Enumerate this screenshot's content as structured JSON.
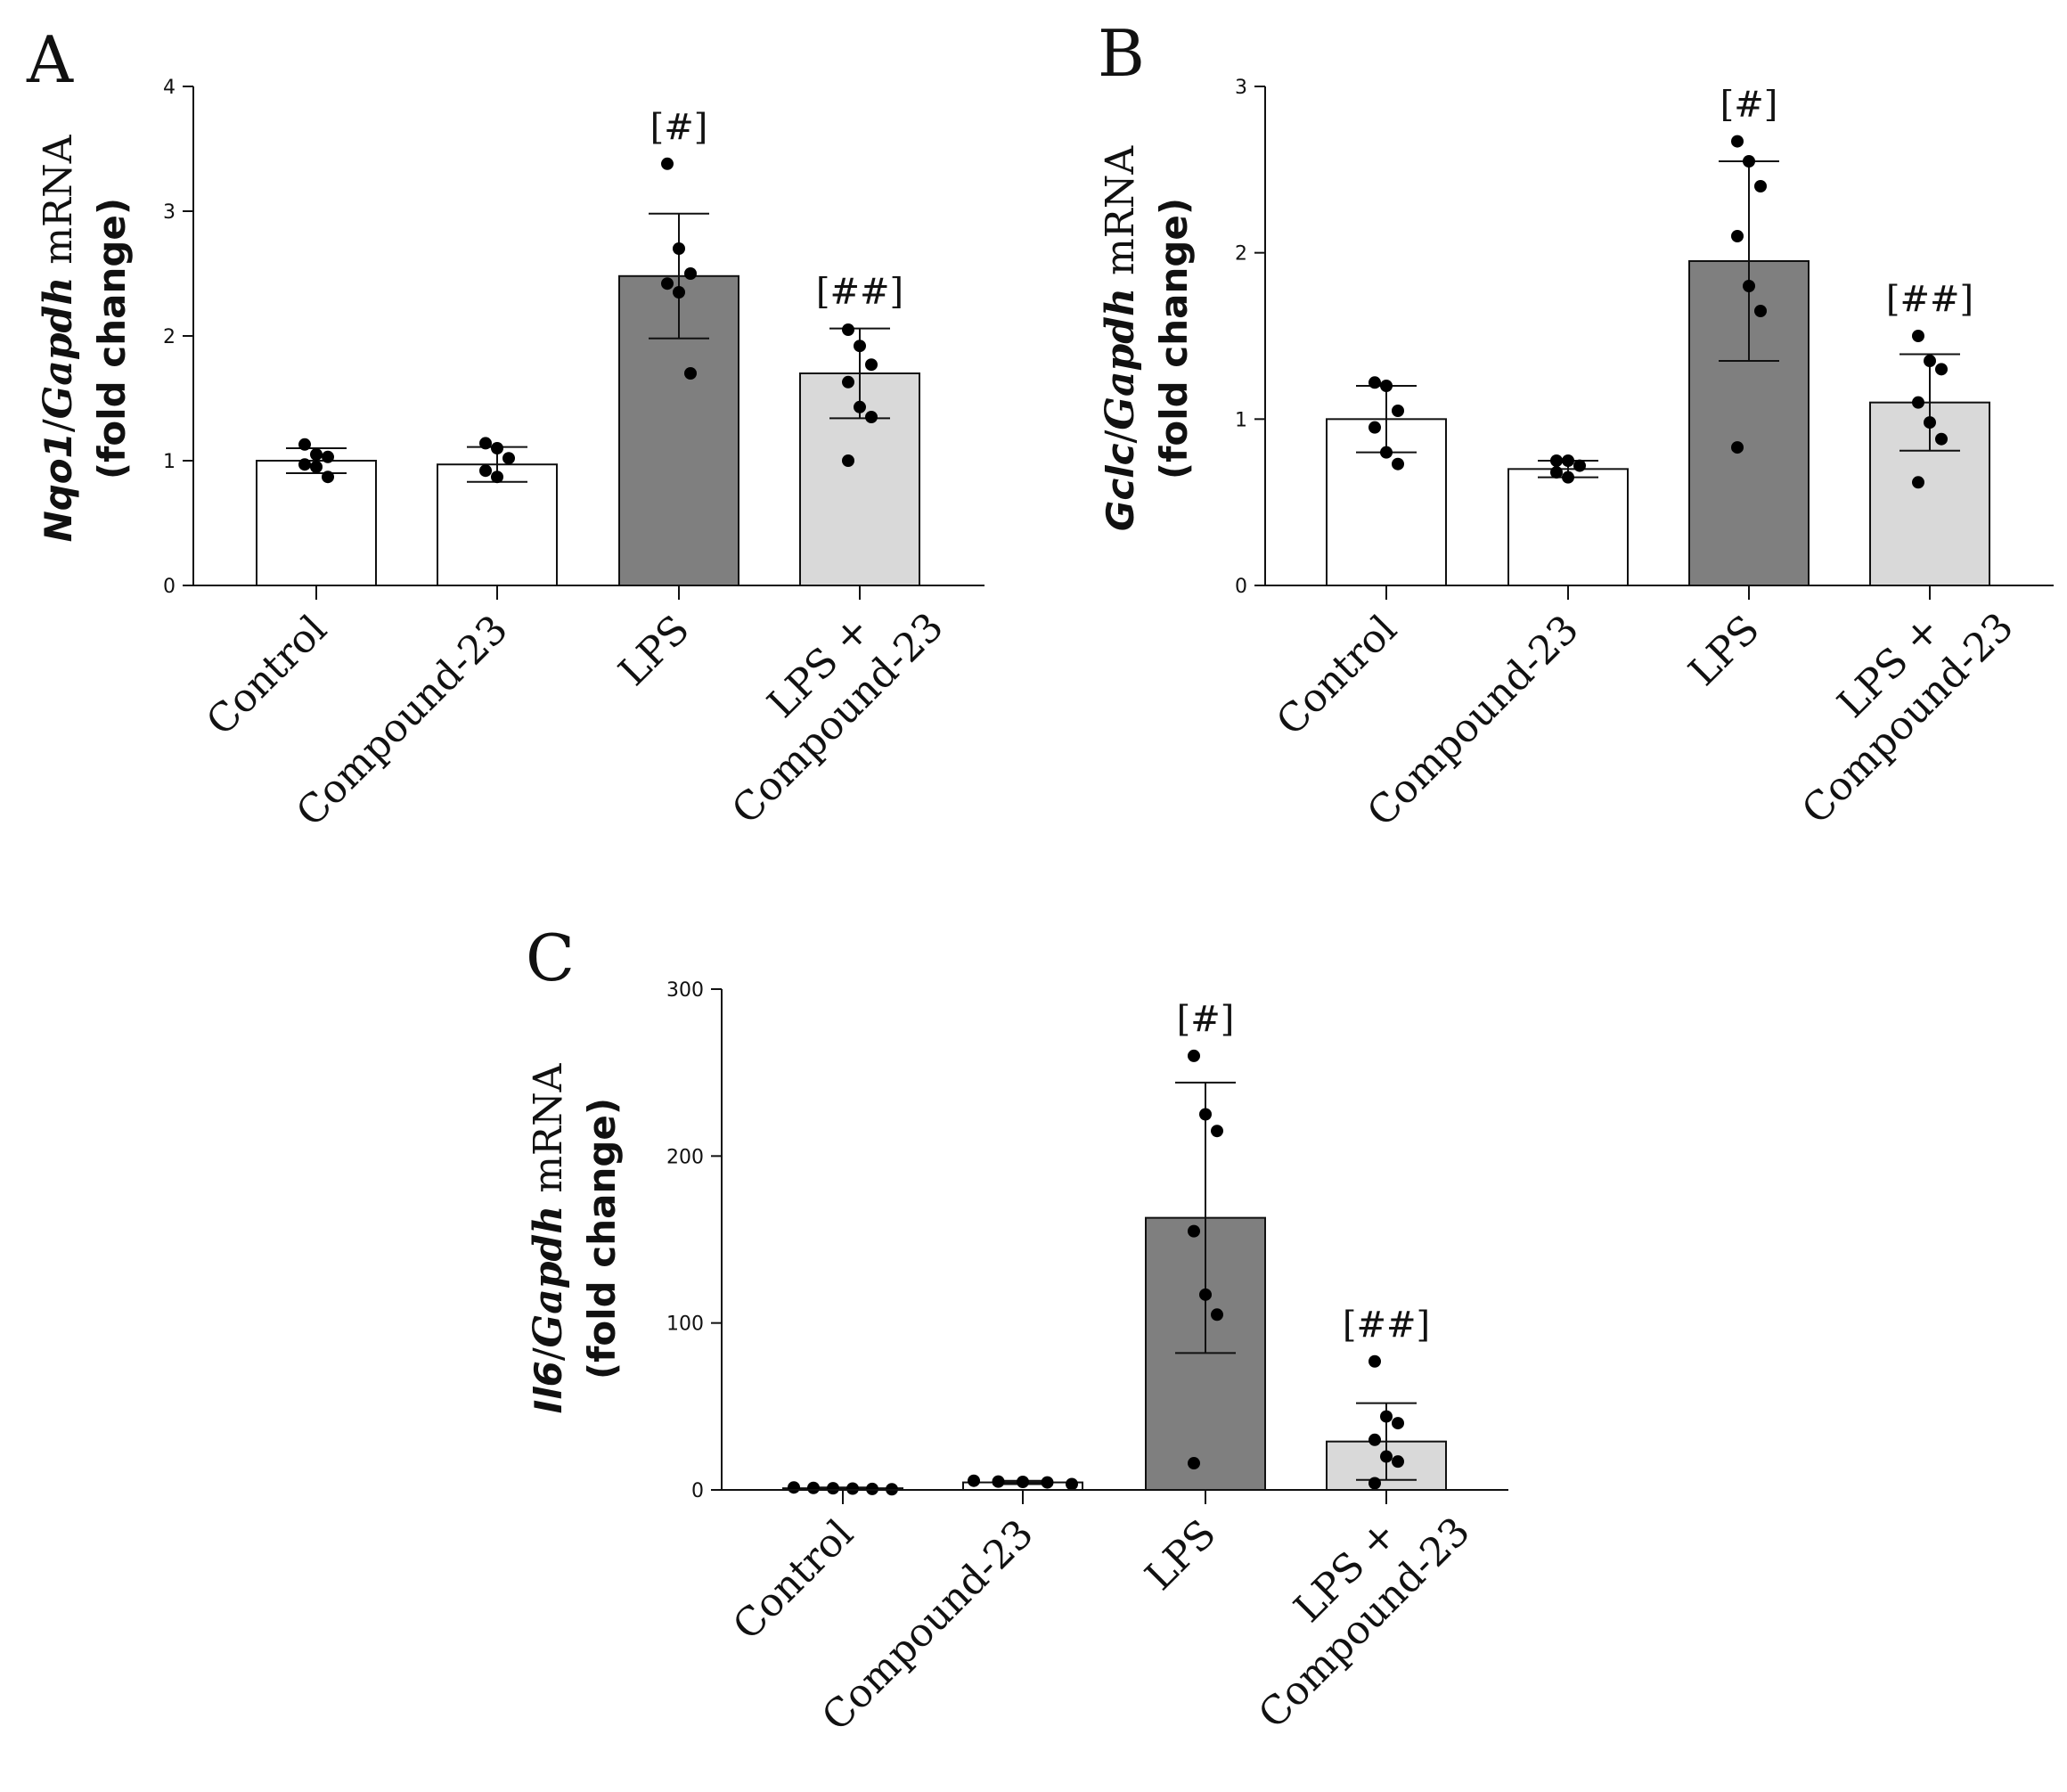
{
  "figure": {
    "panels": [
      "A",
      "B",
      "C"
    ]
  },
  "chart_data": [
    {
      "panel": "A",
      "type": "bar",
      "ylabel_gene": "Nqo1",
      "ylabel_ref": "Gapdh",
      "ylabel_tail": " mRNA",
      "ylabel_line2": "(fold change)",
      "categories": [
        [
          "Control"
        ],
        [
          "Compound-23"
        ],
        [
          "LPS"
        ],
        [
          "LPS +",
          "Compound-23"
        ]
      ],
      "values": [
        1.0,
        0.97,
        2.48,
        1.7
      ],
      "sd": [
        0.1,
        0.14,
        0.5,
        0.36
      ],
      "points": [
        [
          1.13,
          1.05,
          1.03,
          0.97,
          0.95,
          0.87
        ],
        [
          1.14,
          1.1,
          1.02,
          0.92,
          0.87
        ],
        [
          3.38,
          2.7,
          2.5,
          2.42,
          2.35,
          1.7
        ],
        [
          2.05,
          1.92,
          1.77,
          1.63,
          1.43,
          1.35,
          1.0
        ]
      ],
      "fill_colors": [
        "#ffffff",
        "#ffffff",
        "#7f7f7f",
        "#d9d9d9"
      ],
      "significance": [
        "",
        "",
        "[#]",
        "[##]"
      ],
      "ylim": [
        0,
        4
      ],
      "yticks": [
        0,
        1,
        2,
        3,
        4
      ]
    },
    {
      "panel": "B",
      "type": "bar",
      "ylabel_gene": "Gclc",
      "ylabel_ref": "Gapdh",
      "ylabel_tail": " mRNA",
      "ylabel_line2": "(fold change)",
      "categories": [
        [
          "Control"
        ],
        [
          "Compound-23"
        ],
        [
          "LPS"
        ],
        [
          "LPS +",
          "Compound-23"
        ]
      ],
      "values": [
        1.0,
        0.7,
        1.95,
        1.1
      ],
      "sd": [
        0.2,
        0.05,
        0.6,
        0.29
      ],
      "points": [
        [
          1.22,
          1.2,
          1.05,
          0.95,
          0.8,
          0.73
        ],
        [
          0.75,
          0.75,
          0.72,
          0.68,
          0.65
        ],
        [
          2.67,
          2.55,
          2.4,
          2.1,
          1.8,
          1.65,
          0.83
        ],
        [
          1.5,
          1.35,
          1.3,
          1.1,
          0.98,
          0.88,
          0.62
        ]
      ],
      "fill_colors": [
        "#ffffff",
        "#ffffff",
        "#7f7f7f",
        "#d9d9d9"
      ],
      "significance": [
        "",
        "",
        "[#]",
        "[##]"
      ],
      "ylim": [
        0,
        3
      ],
      "yticks": [
        0,
        1,
        2,
        3
      ]
    },
    {
      "panel": "C",
      "type": "bar",
      "ylabel_gene": "Il6",
      "ylabel_ref": "Gapdh",
      "ylabel_tail": " mRNA",
      "ylabel_line2": "(fold change)",
      "categories": [
        [
          "Control"
        ],
        [
          "Compound-23"
        ],
        [
          "LPS"
        ],
        [
          "LPS +",
          "Compound-23"
        ]
      ],
      "values": [
        1.0,
        4.5,
        163,
        29
      ],
      "sd": [
        0.5,
        1.0,
        81,
        23
      ],
      "points": [
        [
          1.5,
          1.2,
          1.0,
          0.8,
          0.6,
          0.4
        ],
        [
          5.5,
          5.0,
          4.8,
          4.5,
          3.5
        ],
        [
          260,
          225,
          215,
          155,
          117,
          105,
          16
        ],
        [
          77,
          44,
          40,
          30,
          20,
          17,
          4
        ]
      ],
      "fill_colors": [
        "#ffffff",
        "#ffffff",
        "#7f7f7f",
        "#d9d9d9"
      ],
      "significance": [
        "",
        "",
        "[#]",
        "[##]"
      ],
      "ylim": [
        0,
        300
      ],
      "yticks": [
        0,
        100,
        200,
        300
      ]
    }
  ]
}
